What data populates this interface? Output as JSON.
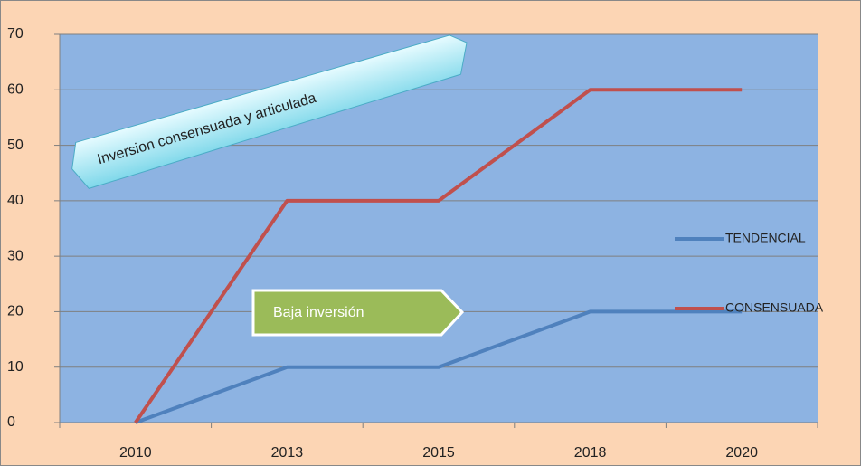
{
  "chart_data": {
    "type": "line",
    "categories": [
      "2010",
      "2013",
      "2015",
      "2018",
      "2020"
    ],
    "series": [
      {
        "name": "TENDENCIAL",
        "color": "#4f81bd",
        "values": [
          0,
          10,
          10,
          20,
          20
        ]
      },
      {
        "name": "CONSENSUADA",
        "color": "#c0504d",
        "values": [
          0,
          40,
          40,
          60,
          60
        ]
      }
    ],
    "ylim": [
      0,
      70
    ],
    "yticks": [
      0,
      10,
      20,
      30,
      40,
      50,
      60,
      70
    ],
    "grid": true,
    "legend": "right",
    "plot_color": "#8db3e2",
    "annotations": [
      "Inversion consensuada y articulada",
      "Baja inversión"
    ]
  }
}
